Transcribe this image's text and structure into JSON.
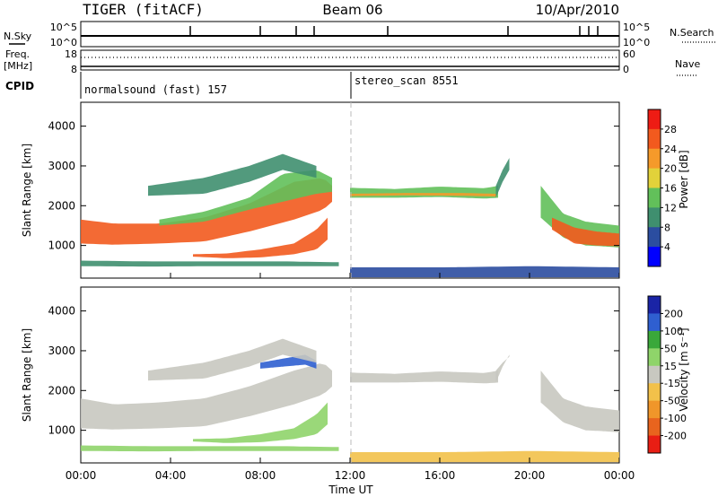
{
  "header": {
    "radar": "TIGER (fitACF)",
    "beam": "Beam 06",
    "date": "10/Apr/2010"
  },
  "panels": {
    "noise": {
      "left_label": "N.Sky",
      "right_label": "N.Search",
      "left_ticks": [
        "10^5",
        "10^0"
      ],
      "right_ticks": [
        "10^5",
        "10^0"
      ]
    },
    "freq": {
      "label": "Freq.",
      "unit": "[MHz]",
      "left_ticks": [
        "18",
        "8"
      ],
      "right_label": "Nave",
      "right_ticks": [
        "60",
        "0"
      ]
    },
    "cpid": {
      "label": "CPID",
      "segments": [
        "normalsound (fast) 157",
        "stereo_scan 8551"
      ]
    }
  },
  "colors": {
    "power_scale": [
      "#0000ff",
      "#2b4da0",
      "#3f8f6f",
      "#62c05a",
      "#e2d23a",
      "#f59a2a",
      "#f25a1e",
      "#ee1c14"
    ],
    "velocity_scale": [
      "#1a24a6",
      "#2f5fd0",
      "#3aa83a",
      "#8fd46a",
      "#c8c8c0",
      "#f2c14a",
      "#f0962a",
      "#e8641e",
      "#e81e14"
    ]
  },
  "chart_data": [
    {
      "type": "heatmap",
      "title": "",
      "xlabel": "Time UT",
      "ylabel": "Slant Range [km]",
      "x_ticks": [
        "00:00",
        "04:00",
        "08:00",
        "12:00",
        "16:00",
        "20:00",
        "00:00"
      ],
      "xlim": [
        0,
        24
      ],
      "y_ticks": [
        1000,
        2000,
        3000,
        4000
      ],
      "ylim": [
        180,
        4600
      ],
      "colorbar": {
        "label": "Power [dB]",
        "ticks": [
          4,
          8,
          12,
          16,
          20,
          24,
          28
        ],
        "range": [
          0,
          32
        ]
      },
      "regions": [
        {
          "t": [
            0.0,
            1.5,
            3.5,
            5.5,
            7.5,
            9.5,
            10.8,
            11.2
          ],
          "r_lo": [
            1050,
            1020,
            1050,
            1100,
            1350,
            1650,
            1900,
            2100
          ],
          "r_hi": [
            1650,
            1550,
            1550,
            1700,
            2050,
            2600,
            2700,
            2500
          ],
          "v": 27
        },
        {
          "t": [
            3.5,
            5.5,
            7.5,
            9.0,
            10.5,
            11.2
          ],
          "r_lo": [
            1500,
            1600,
            1900,
            2100,
            2300,
            2350
          ],
          "r_hi": [
            1650,
            1850,
            2200,
            2800,
            2900,
            2700
          ],
          "v": 14
        },
        {
          "t": [
            5.0,
            6.5,
            8.0,
            9.5,
            10.5,
            11.0
          ],
          "r_lo": [
            720,
            680,
            700,
            780,
            900,
            1150
          ],
          "r_hi": [
            780,
            800,
            900,
            1050,
            1400,
            1700
          ],
          "v": 26
        },
        {
          "t": [
            3.0,
            5.5,
            7.5,
            9.0,
            10.5
          ],
          "r_lo": [
            2250,
            2300,
            2600,
            2900,
            2700
          ],
          "r_hi": [
            2500,
            2700,
            3000,
            3300,
            3000
          ],
          "v": 10
        },
        {
          "t": [
            0.0,
            3.0,
            6.0,
            9.0,
            11.5
          ],
          "r_lo": [
            480,
            470,
            480,
            480,
            480
          ],
          "r_hi": [
            620,
            600,
            600,
            600,
            580
          ],
          "v": 9
        },
        {
          "t": [
            12.0,
            14.0,
            16.0,
            18.0,
            18.6
          ],
          "r_lo": [
            2200,
            2200,
            2220,
            2180,
            2200
          ],
          "r_hi": [
            2450,
            2420,
            2480,
            2440,
            2500
          ],
          "v": 12
        },
        {
          "t": [
            12.0,
            14.5,
            17.0,
            18.5
          ],
          "r_lo": [
            2240,
            2260,
            2250,
            2230
          ],
          "r_hi": [
            2300,
            2320,
            2320,
            2300
          ],
          "v": 21
        },
        {
          "t": [
            18.5,
            18.8,
            19.1
          ],
          "r_lo": [
            2200,
            2600,
            2900
          ],
          "r_hi": [
            2500,
            2900,
            3200
          ],
          "v": 9
        },
        {
          "t": [
            20.5,
            21.5,
            22.5,
            23.2,
            24.0
          ],
          "r_lo": [
            1700,
            1200,
            1000,
            980,
            950
          ],
          "r_hi": [
            2500,
            1800,
            1600,
            1550,
            1500
          ],
          "v": 12
        },
        {
          "t": [
            21.0,
            22.0,
            23.0,
            24.0
          ],
          "r_lo": [
            1400,
            1050,
            1000,
            980
          ],
          "r_hi": [
            1700,
            1450,
            1350,
            1300
          ],
          "v": 24
        },
        {
          "t": [
            12.0,
            16.0,
            20.0,
            24.0
          ],
          "r_lo": [
            200,
            200,
            200,
            200
          ],
          "r_hi": [
            450,
            450,
            480,
            450
          ],
          "v": 7
        }
      ]
    },
    {
      "type": "heatmap",
      "title": "",
      "xlabel": "Time UT",
      "ylabel": "Slant Range [km]",
      "x_ticks": [
        "00:00",
        "04:00",
        "08:00",
        "12:00",
        "16:00",
        "20:00",
        "00:00"
      ],
      "xlim": [
        0,
        24
      ],
      "y_ticks": [
        1000,
        2000,
        3000,
        4000
      ],
      "ylim": [
        180,
        4600
      ],
      "colorbar": {
        "label": "Velocity [m s⁻¹]",
        "ticks": [
          200,
          100,
          50,
          15,
          -15,
          -50,
          -100,
          -200
        ],
        "range": [
          -250,
          250
        ]
      },
      "regions": [
        {
          "t": [
            0.0,
            1.5,
            3.5,
            5.5,
            7.5,
            9.5,
            10.8,
            11.2
          ],
          "r_lo": [
            1050,
            1020,
            1050,
            1100,
            1350,
            1650,
            1900,
            2100
          ],
          "r_hi": [
            1800,
            1650,
            1700,
            1800,
            2100,
            2500,
            2700,
            2500
          ],
          "v": 0
        },
        {
          "t": [
            5.0,
            6.5,
            8.0,
            9.5,
            10.5,
            11.0
          ],
          "r_lo": [
            720,
            680,
            700,
            780,
            900,
            1150
          ],
          "r_hi": [
            780,
            800,
            900,
            1050,
            1400,
            1700
          ],
          "v": 30
        },
        {
          "t": [
            8.0,
            9.0,
            10.0,
            10.5
          ],
          "r_lo": [
            2550,
            2600,
            2650,
            2550
          ],
          "r_hi": [
            2700,
            2800,
            2900,
            2750
          ],
          "v": 180
        },
        {
          "t": [
            3.0,
            5.5,
            7.5,
            9.0,
            10.5
          ],
          "r_lo": [
            2250,
            2300,
            2600,
            2900,
            2700
          ],
          "r_hi": [
            2500,
            2700,
            3000,
            3300,
            3000
          ],
          "v": 0
        },
        {
          "t": [
            0.0,
            3.0,
            6.0,
            9.0,
            11.5
          ],
          "r_lo": [
            480,
            470,
            480,
            480,
            480
          ],
          "r_hi": [
            620,
            600,
            600,
            600,
            580
          ],
          "v": 40
        },
        {
          "t": [
            12.0,
            14.0,
            16.0,
            18.0,
            18.6
          ],
          "r_lo": [
            2200,
            2200,
            2220,
            2180,
            2200
          ],
          "r_hi": [
            2450,
            2420,
            2480,
            2440,
            2500
          ],
          "v": 0
        },
        {
          "t": [
            18.5,
            18.8,
            19.1
          ],
          "r_lo": [
            2200,
            2600,
            2900
          ],
          "r_hi": [
            2500,
            2700,
            2850
          ],
          "v": 0
        },
        {
          "t": [
            20.5,
            21.5,
            22.5,
            23.2,
            24.0
          ],
          "r_lo": [
            1700,
            1200,
            1000,
            980,
            950
          ],
          "r_hi": [
            2500,
            1800,
            1600,
            1550,
            1500
          ],
          "v": 0
        },
        {
          "t": [
            12.0,
            16.0,
            20.0,
            24.0
          ],
          "r_lo": [
            200,
            200,
            200,
            200
          ],
          "r_hi": [
            450,
            450,
            480,
            450
          ],
          "v": -60
        }
      ]
    }
  ]
}
